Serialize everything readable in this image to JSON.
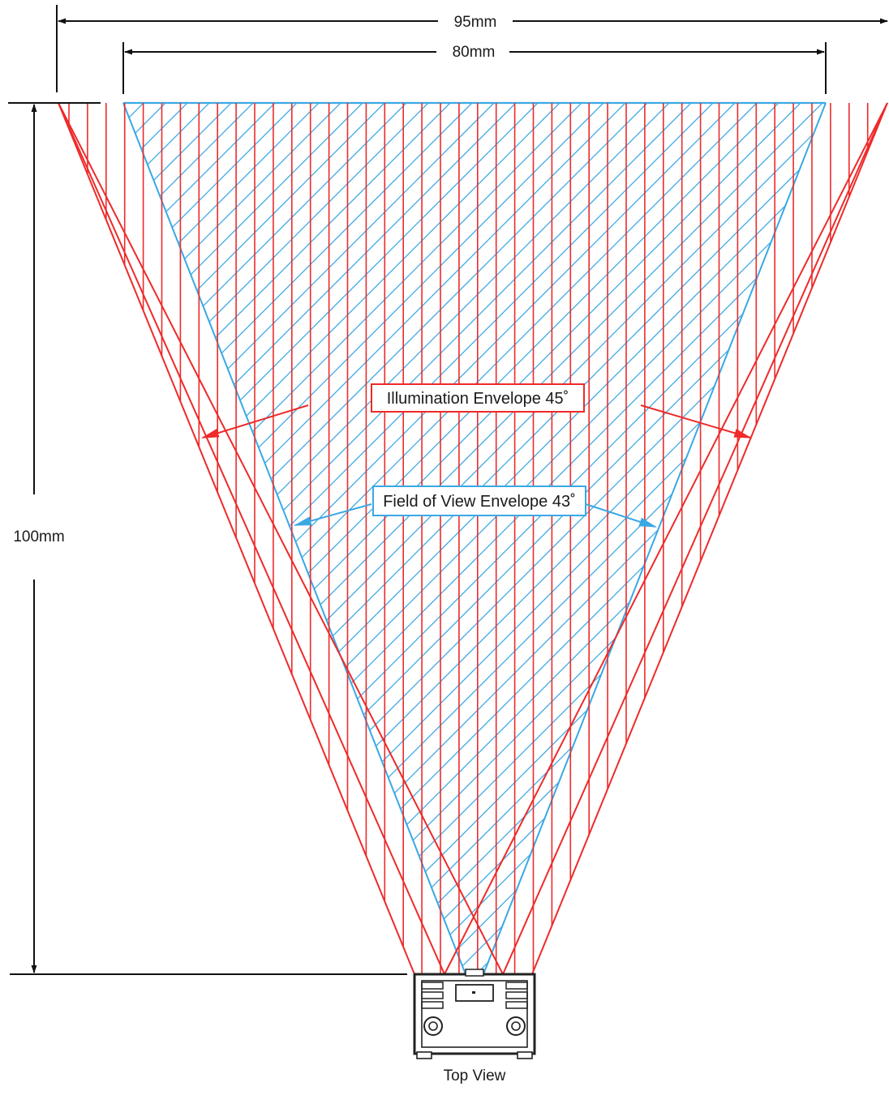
{
  "diagram": {
    "caption": "Top View",
    "dimensions": {
      "overall_width": "95mm",
      "fov_width": "80mm",
      "distance": "100mm"
    },
    "labels": {
      "illumination": "Illumination Envelope 45˚",
      "field_of_view": "Field of View Envelope 43˚"
    },
    "colors": {
      "illumination": "#ee2a2a",
      "field_of_view": "#3aa8e4",
      "dimension_lines": "#111111",
      "device": "#222222"
    }
  }
}
